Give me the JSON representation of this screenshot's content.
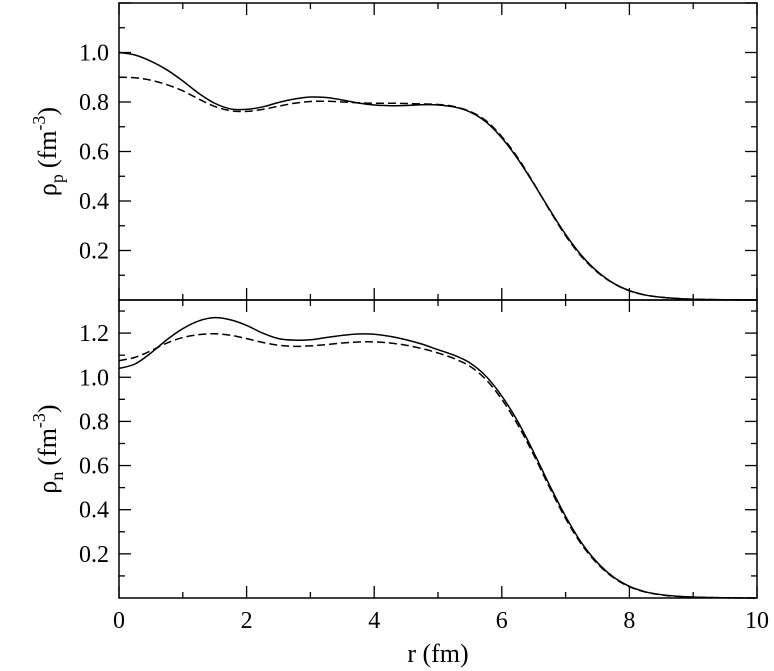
{
  "chart_data": [
    {
      "type": "line",
      "title": "",
      "xlabel": "r (fm)",
      "ylabel": {
        "symbol": "ρ",
        "subscript": "p",
        "unit_open": "(fm",
        "exponent": "-3",
        "unit_close": ")"
      },
      "xlim": [
        0,
        10
      ],
      "ylim": [
        0,
        1.2
      ],
      "xticks": [
        0,
        2,
        4,
        6,
        8,
        10
      ],
      "yticks": [
        0.2,
        0.4,
        0.6,
        0.8,
        1.0
      ],
      "ytick_labels": [
        "0.2",
        "0.4",
        "0.6",
        "0.8",
        "1.0"
      ],
      "grid": false,
      "series": [
        {
          "style": "solid",
          "x": [
            0,
            0.25,
            0.5,
            0.75,
            1,
            1.25,
            1.5,
            1.75,
            2,
            2.25,
            2.5,
            2.75,
            3,
            3.25,
            3.5,
            3.75,
            4,
            4.25,
            4.5,
            4.75,
            5,
            5.25,
            5.5,
            5.75,
            6,
            6.25,
            6.5,
            6.75,
            7,
            7.25,
            7.5,
            7.75,
            8,
            8.25,
            8.5,
            8.75,
            9,
            9.5,
            10
          ],
          "y": [
            1.0,
            0.99,
            0.965,
            0.93,
            0.885,
            0.835,
            0.795,
            0.772,
            0.77,
            0.78,
            0.798,
            0.812,
            0.82,
            0.818,
            0.808,
            0.796,
            0.788,
            0.785,
            0.786,
            0.789,
            0.788,
            0.78,
            0.76,
            0.72,
            0.655,
            0.57,
            0.47,
            0.365,
            0.265,
            0.18,
            0.115,
            0.068,
            0.038,
            0.02,
            0.011,
            0.006,
            0.003,
            0.001,
            0.0
          ]
        },
        {
          "style": "dashed",
          "x": [
            0,
            0.25,
            0.5,
            0.75,
            1,
            1.25,
            1.5,
            1.75,
            2,
            2.25,
            2.5,
            2.75,
            3,
            3.25,
            3.5,
            3.75,
            4,
            4.25,
            4.5,
            4.75,
            5,
            5.25,
            5.5,
            5.75,
            6,
            6.25,
            6.5,
            6.75,
            7,
            7.25,
            7.5,
            7.75,
            8,
            8.25,
            8.5,
            8.75,
            9,
            9.5,
            10
          ],
          "y": [
            0.9,
            0.898,
            0.888,
            0.87,
            0.845,
            0.812,
            0.782,
            0.765,
            0.762,
            0.77,
            0.783,
            0.795,
            0.802,
            0.803,
            0.8,
            0.797,
            0.795,
            0.795,
            0.794,
            0.792,
            0.79,
            0.782,
            0.762,
            0.725,
            0.66,
            0.575,
            0.472,
            0.362,
            0.26,
            0.175,
            0.112,
            0.067,
            0.037,
            0.02,
            0.011,
            0.006,
            0.003,
            0.001,
            0.0
          ]
        }
      ]
    },
    {
      "type": "line",
      "title": "",
      "xlabel": "r (fm)",
      "ylabel": {
        "symbol": "ρ",
        "subscript": "n",
        "unit_open": "(fm",
        "exponent": "-3",
        "unit_close": ")"
      },
      "xlim": [
        0,
        10
      ],
      "ylim": [
        0,
        1.35
      ],
      "xticks": [
        0,
        2,
        4,
        6,
        8,
        10
      ],
      "xtick_labels": [
        "0",
        "2",
        "4",
        "6",
        "8",
        "10"
      ],
      "yticks": [
        0.2,
        0.4,
        0.6,
        0.8,
        1.0,
        1.2
      ],
      "ytick_labels": [
        "0.2",
        "0.4",
        "0.6",
        "0.8",
        "1.0",
        "1.2"
      ],
      "grid": false,
      "series": [
        {
          "style": "solid",
          "x": [
            0,
            0.25,
            0.5,
            0.75,
            1,
            1.25,
            1.5,
            1.75,
            2,
            2.25,
            2.5,
            2.75,
            3,
            3.25,
            3.5,
            3.75,
            4,
            4.25,
            4.5,
            4.75,
            5,
            5.25,
            5.5,
            5.75,
            6,
            6.25,
            6.5,
            6.75,
            7,
            7.25,
            7.5,
            7.75,
            8,
            8.25,
            8.5,
            8.75,
            9,
            9.5,
            10
          ],
          "y": [
            1.04,
            1.06,
            1.11,
            1.17,
            1.22,
            1.255,
            1.27,
            1.26,
            1.235,
            1.2,
            1.175,
            1.168,
            1.17,
            1.18,
            1.19,
            1.196,
            1.195,
            1.185,
            1.17,
            1.15,
            1.125,
            1.1,
            1.065,
            1.005,
            0.915,
            0.8,
            0.66,
            0.51,
            0.37,
            0.25,
            0.16,
            0.095,
            0.053,
            0.028,
            0.015,
            0.008,
            0.004,
            0.001,
            0.0
          ]
        },
        {
          "style": "dashed",
          "x": [
            0,
            0.25,
            0.5,
            0.75,
            1,
            1.25,
            1.5,
            1.75,
            2,
            2.25,
            2.5,
            2.75,
            3,
            3.25,
            3.5,
            3.75,
            4,
            4.25,
            4.5,
            4.75,
            5,
            5.25,
            5.5,
            5.75,
            6,
            6.25,
            6.5,
            6.75,
            7,
            7.25,
            7.5,
            7.75,
            8,
            8.25,
            8.5,
            8.75,
            9,
            9.5,
            10
          ],
          "y": [
            1.075,
            1.09,
            1.12,
            1.155,
            1.18,
            1.193,
            1.197,
            1.19,
            1.175,
            1.158,
            1.145,
            1.14,
            1.142,
            1.148,
            1.155,
            1.16,
            1.16,
            1.155,
            1.145,
            1.13,
            1.11,
            1.085,
            1.05,
            0.99,
            0.9,
            0.785,
            0.648,
            0.5,
            0.36,
            0.243,
            0.155,
            0.092,
            0.051,
            0.027,
            0.014,
            0.007,
            0.004,
            0.001,
            0.0
          ]
        }
      ]
    }
  ]
}
